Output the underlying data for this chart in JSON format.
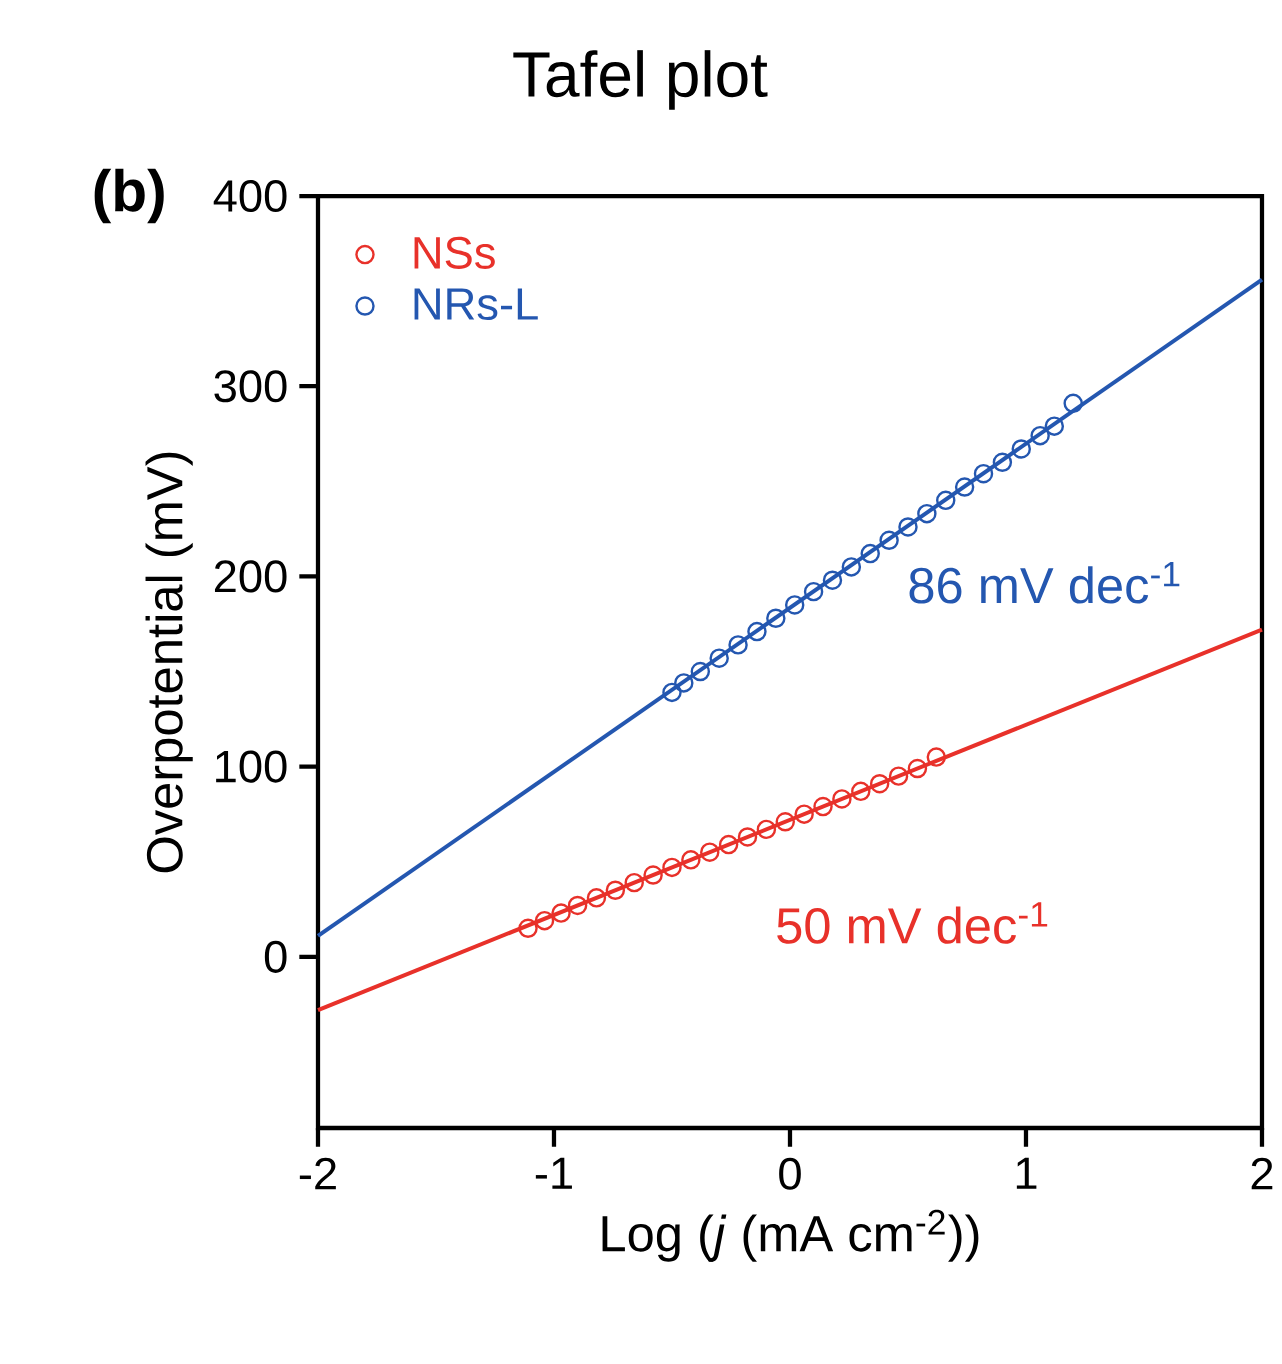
{
  "chart_data": {
    "type": "scatter",
    "title": "Tafel plot",
    "xlabel": "Log (*j* (mA cm$^{-2}$))",
    "ylabel": "Overpotential (mV)",
    "xlim": [
      -2,
      2
    ],
    "ylim": [
      -90,
      400
    ],
    "xticks": [
      -2,
      -1,
      0,
      1,
      2
    ],
    "yticks": [
      0,
      100,
      200,
      300,
      400
    ],
    "grid": false,
    "legend": "top left",
    "annotations": [
      "(b)",
      "86 mV dec$^{-1}$",
      "50 mV dec$^{-1}$"
    ],
    "series": [
      {
        "name": "NSs",
        "color": "#e8312a",
        "marker": "circle",
        "x": [
          -1.11,
          -1.04,
          -0.97,
          -0.9,
          -0.82,
          -0.74,
          -0.66,
          -0.58,
          -0.5,
          -0.42,
          -0.34,
          -0.26,
          -0.18,
          -0.1,
          -0.02,
          0.06,
          0.14,
          0.22,
          0.3,
          0.38,
          0.46,
          0.54,
          0.62
        ],
        "values": [
          15,
          19,
          23,
          27,
          31,
          35,
          39,
          43,
          47,
          51,
          55,
          59,
          63,
          67,
          71,
          75,
          79,
          83,
          87,
          91,
          95,
          99,
          105
        ]
      },
      {
        "name": "NRs-L",
        "color": "#2457b0",
        "marker": "circle",
        "x": [
          -0.5,
          -0.45,
          -0.38,
          -0.3,
          -0.22,
          -0.14,
          -0.06,
          0.02,
          0.1,
          0.18,
          0.26,
          0.34,
          0.42,
          0.5,
          0.58,
          0.66,
          0.74,
          0.82,
          0.9,
          0.98,
          1.06,
          1.12,
          1.2
        ],
        "values": [
          139,
          144,
          150,
          157,
          164,
          171,
          178,
          185,
          192,
          198,
          205,
          212,
          219,
          226,
          233,
          240,
          247,
          254,
          260,
          267,
          274,
          279,
          291
        ]
      },
      {
        "type": "line",
        "color": "#e8312a",
        "marker": "none",
        "x": [
          -2,
          2
        ],
        "values": [
          -28,
          172
        ]
      },
      {
        "type": "line",
        "color": "#2457b0",
        "marker": "none",
        "x": [
          -2,
          2
        ],
        "values": [
          11,
          356
        ]
      }
    ]
  }
}
